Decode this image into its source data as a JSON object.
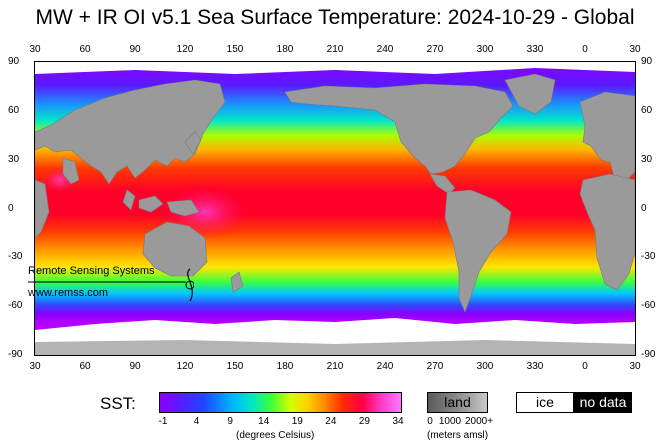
{
  "title": "MW + IR OI v5.1 Sea Surface Temperature: 2024-10-29 - Global",
  "map": {
    "x_ticks": [
      "30",
      "60",
      "90",
      "120",
      "150",
      "180",
      "210",
      "240",
      "270",
      "300",
      "330",
      "0",
      "30"
    ],
    "y_ticks": [
      "90",
      "60",
      "30",
      "0",
      "-30",
      "-60",
      "-90"
    ],
    "logo": {
      "name": "Remote Sensing Systems",
      "url": "www.remss.com"
    }
  },
  "legend": {
    "sst_label": "SST:",
    "sst_ticks": [
      "-1",
      "4",
      "9",
      "14",
      "19",
      "24",
      "29",
      "34"
    ],
    "sst_units": "(degrees Celsius)",
    "land_label": "land",
    "land_ticks": [
      "0",
      "1000",
      "2000+"
    ],
    "land_units": "(meters amsl)",
    "ice_label": "ice",
    "nodata_label": "no data"
  },
  "colors": {
    "land": "#9a9a9a",
    "ice": "#ffffff",
    "no_data": "#000000"
  }
}
